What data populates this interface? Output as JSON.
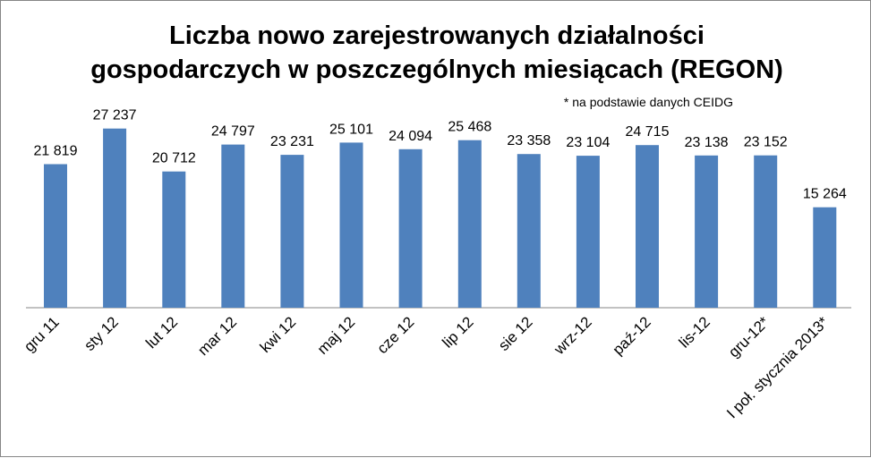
{
  "chart_data": {
    "type": "bar",
    "title": "Liczba nowo zarejestrowanych działalności gospodarczych w poszczególnych miesiącach (REGON)",
    "title_lines": [
      "Liczba nowo zarejestrowanych działalności",
      "gospodarczych w poszczególnych miesiącach (REGON)"
    ],
    "annotation": "* na podstawie danych CEIDG",
    "categories": [
      "gru 11",
      "sty 12",
      "lut 12",
      "mar 12",
      "kwi 12",
      "maj 12",
      "cze 12",
      "lip 12",
      "sie 12",
      "wrz-12",
      "paź-12",
      "lis-12",
      "gru-12*",
      "I poł. stycznia 2013*"
    ],
    "values": [
      21819,
      27237,
      20712,
      24797,
      23231,
      25101,
      24094,
      25468,
      23358,
      23104,
      24715,
      23138,
      23152,
      15264
    ],
    "data_labels": [
      "21 819",
      "27 237",
      "20 712",
      "24 797",
      "23 231",
      "25 101",
      "24 094",
      "25 468",
      "23 358",
      "23 104",
      "24 715",
      "23 138",
      "23 152",
      "15 264"
    ],
    "xlabel": "",
    "ylabel": "",
    "ylim": [
      0,
      40000
    ],
    "grid": false,
    "legend": "none",
    "bar_color": "#4F81BD"
  }
}
